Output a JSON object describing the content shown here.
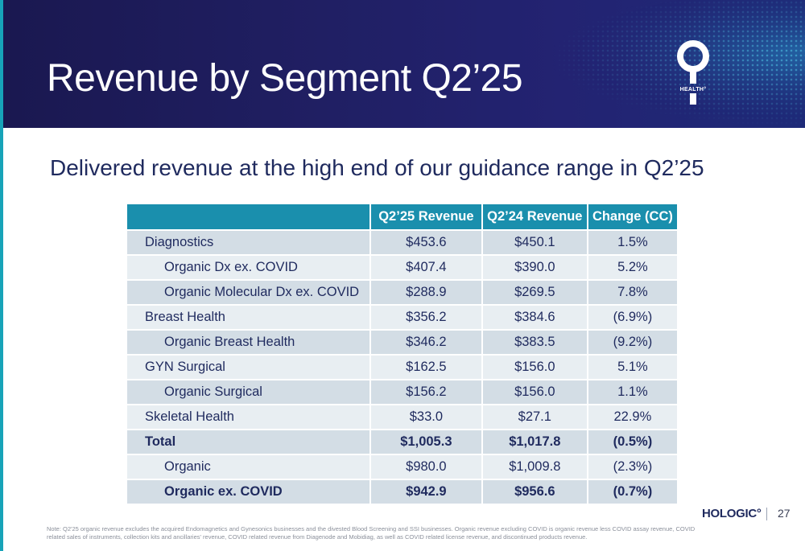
{
  "header": {
    "title": "Revenue by Segment Q2’25",
    "logo_text": "HEALTH°"
  },
  "subtitle": "Delivered revenue at the high end of our guidance range in Q2’25",
  "table": {
    "columns": [
      "",
      "Q2’25 Revenue",
      "Q2’24 Revenue",
      "Change (CC)"
    ],
    "rows": [
      {
        "label": "Diagnostics",
        "q225": "$453.6",
        "q224": "$450.1",
        "change": "1.5%"
      },
      {
        "label": "Organic Dx ex. COVID",
        "q225": "$407.4",
        "q224": "$390.0",
        "change": "5.2%"
      },
      {
        "label": "Organic Molecular Dx ex. COVID",
        "q225": "$288.9",
        "q224": "$269.5",
        "change": "7.8%"
      },
      {
        "label": "Breast Health",
        "q225": "$356.2",
        "q224": "$384.6",
        "change": "(6.9%)"
      },
      {
        "label": "Organic Breast Health",
        "q225": "$346.2",
        "q224": "$383.5",
        "change": "(9.2%)"
      },
      {
        "label": "GYN Surgical",
        "q225": "$162.5",
        "q224": "$156.0",
        "change": "5.1%"
      },
      {
        "label": "Organic Surgical",
        "q225": "$156.2",
        "q224": "$156.0",
        "change": "1.1%"
      },
      {
        "label": "Skeletal Health",
        "q225": "$33.0",
        "q224": "$27.1",
        "change": "22.9%"
      },
      {
        "label": "Total",
        "q225": "$1,005.3",
        "q224": "$1,017.8",
        "change": "(0.5%)"
      },
      {
        "label": "Organic",
        "q225": "$980.0",
        "q224": "$1,009.8",
        "change": "(2.3%)"
      },
      {
        "label": "Organic ex. COVID",
        "q225": "$942.9",
        "q224": "$956.6",
        "change": "(0.7%)"
      }
    ]
  },
  "footer": {
    "brand": "HOLOGIC°",
    "page_number": "27",
    "note": "Note: Q2'25 organic revenue excludes the acquired Endomagnetics and Gynesonics businesses and the divested Blood Screening and SSI businesses. Organic revenue excluding COVID is organic revenue less COVID assay revenue, COVID related sales of instruments, collection kits and ancillaries' revenue, COVID related revenue from Diagenode and Mobidiag, as well as COVID related license revenue, and discontinued products revenue."
  },
  "colors": {
    "header_bg": "#201f63",
    "table_header_bg": "#1a8fad",
    "text_navy": "#1f2a5e",
    "accent_teal": "#17a3b8"
  }
}
